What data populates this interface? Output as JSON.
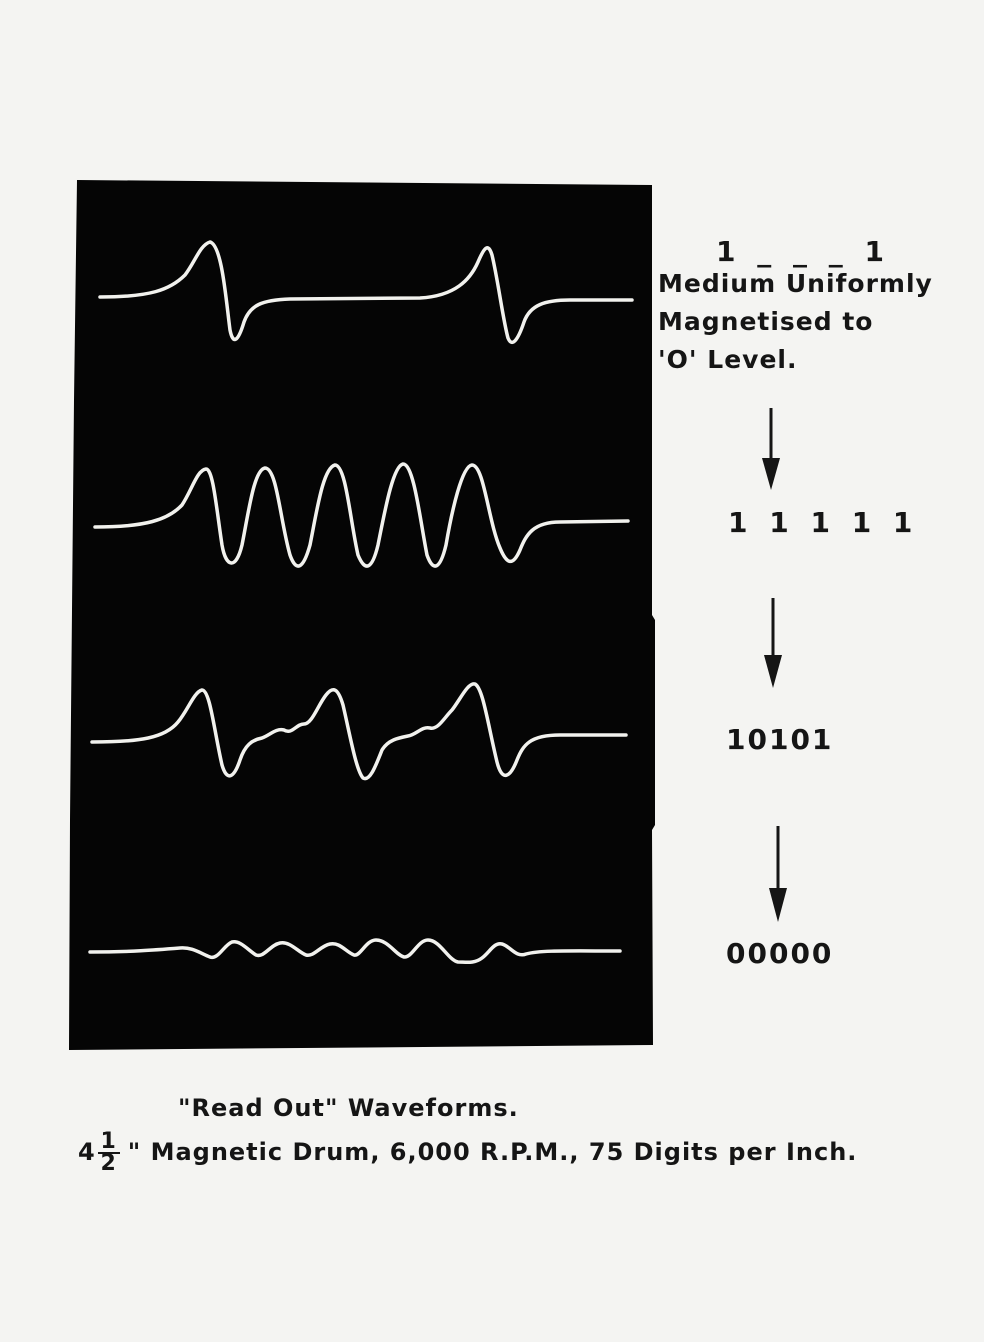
{
  "labels": {
    "top_pattern": "1 _ _ _ 1",
    "annotation": [
      "Medium Uniformly",
      "Magnetised  to",
      "'O'  Level."
    ],
    "patterns": [
      "1 1 1 1 1",
      "10101",
      "00000"
    ]
  },
  "caption": {
    "line1": "\"Read  Out\"  Waveforms.",
    "line2_lead": "4",
    "fraction_numerator": "1",
    "fraction_denominator": "2",
    "line2_rest": "\"  Magnetic  Drum,  6,000  R.P.M.,  75  Digits  per  Inch."
  },
  "colors": {
    "screen": "#050505",
    "trace": "#f2f2ee",
    "ink": "#151515",
    "paper": "#f4f4f2"
  }
}
